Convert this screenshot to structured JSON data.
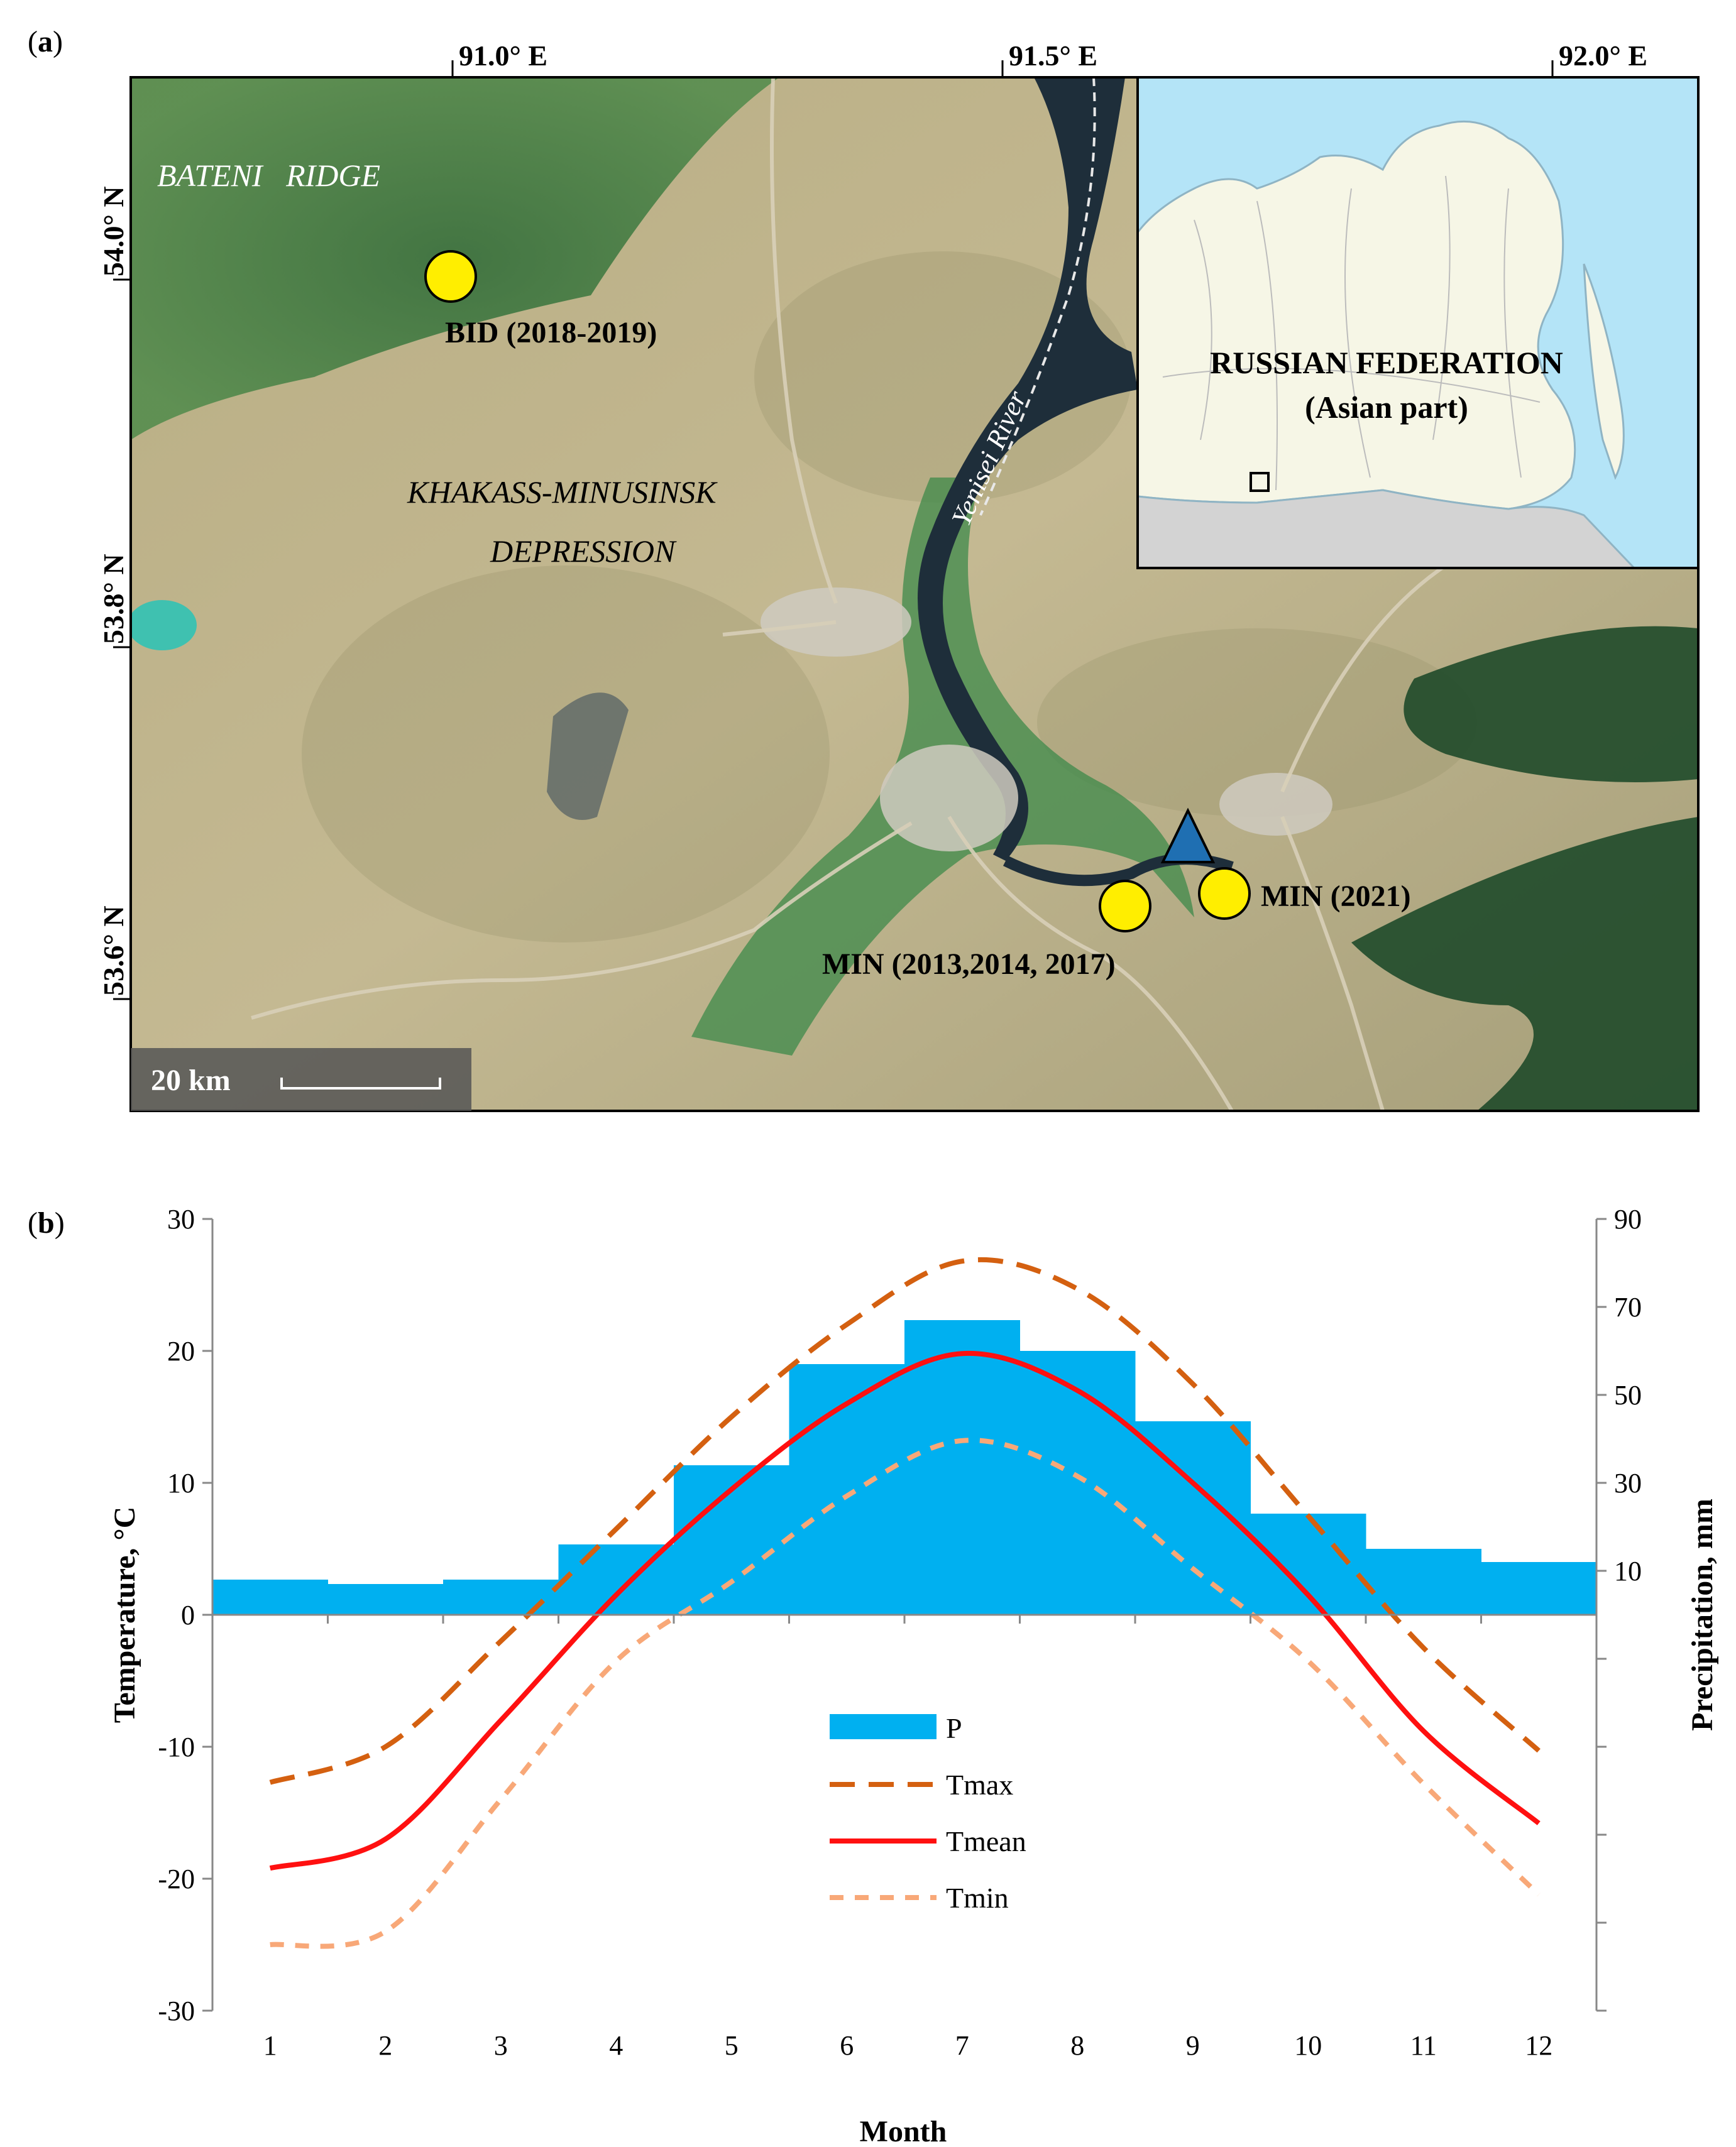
{
  "panel_a": {
    "label_prefix": "(",
    "label_letter": "a",
    "label_suffix": ")",
    "lon_ticks": [
      "91.0° E",
      "91.5° E",
      "92.0° E"
    ],
    "lat_ticks": [
      "54.0° N",
      "53.8° N",
      "53.6° N"
    ],
    "region_labels": {
      "bateni": "BATENI   RIDGE",
      "khakass_line1": "KHAKASS-MINUSINSK",
      "khakass_line2": "DEPRESSION",
      "river": "Yenisei River"
    },
    "sites": [
      {
        "name": "BID (2018-2019)"
      },
      {
        "name": "MIN (2013,2014, 2017)"
      },
      {
        "name": "MIN (2021)"
      }
    ],
    "inset": {
      "line1": "RUSSIAN FEDERATION",
      "line2": "(Asian part)"
    },
    "scale_bar": "20 km",
    "colors": {
      "site_marker": "#ffee00",
      "station_marker": "#1f6fb2",
      "inset_water": "#b4e4f7",
      "inset_land": "#f6f6e6",
      "inset_outside": "#d3d3d3"
    }
  },
  "panel_b": {
    "label_prefix": "(",
    "label_letter": "b",
    "label_suffix": ")",
    "chart_data": {
      "type": "bar+line",
      "categories": [
        1,
        2,
        3,
        4,
        5,
        6,
        7,
        8,
        9,
        10,
        11,
        12
      ],
      "xlabel": "Month",
      "ylabel_left": "Temperature, °C",
      "ylabel_right": "Precipitation, mm",
      "ylim_left": [
        -30,
        30
      ],
      "ylim_right": [
        -90,
        90
      ],
      "left_ticks": [
        -30,
        -20,
        -10,
        0,
        10,
        20,
        30
      ],
      "right_tick_labels": [
        10,
        30,
        50,
        70,
        90
      ],
      "right_tick_marks": [
        -90,
        -70,
        -50,
        -30,
        -10,
        10,
        30,
        50,
        70,
        90
      ],
      "bars": {
        "name": "P",
        "color": "#00b0f0",
        "values": [
          8,
          7,
          8,
          16,
          34,
          57,
          67,
          60,
          44,
          23,
          15,
          12
        ]
      },
      "series": [
        {
          "name": "Tmax",
          "color": "#d46010",
          "style": "dashed-long",
          "values": [
            -12.7,
            -10,
            -2,
            6.5,
            15,
            22,
            26.8,
            24.7,
            17.5,
            7.5,
            -2.5,
            -10.3
          ]
        },
        {
          "name": "Tmean",
          "color": "#ff1010",
          "style": "solid",
          "values": [
            -19.2,
            -17,
            -8,
            1.5,
            9.5,
            16,
            19.8,
            17,
            10,
            1.5,
            -8.8,
            -15.8
          ]
        },
        {
          "name": "Tmin",
          "color": "#f8a878",
          "style": "dashed-short",
          "values": [
            -25,
            -24,
            -14,
            -3.5,
            2.5,
            9,
            13.2,
            10.5,
            3.5,
            -3.5,
            -12.8,
            -21.2
          ]
        }
      ],
      "legend": [
        "P",
        "Tmax",
        "Tmean",
        "Tmin"
      ],
      "legend_position": "center"
    }
  }
}
